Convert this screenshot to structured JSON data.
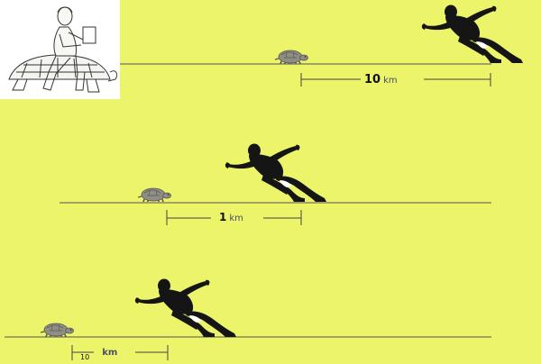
{
  "scenes": [
    {
      "distance_value": "10",
      "distance_unit": "km"
    },
    {
      "distance_value": "1",
      "distance_unit": "km"
    },
    {
      "distance_value": "10",
      "distance_unit": "km"
    }
  ],
  "colors": {
    "background": "#ecf46a",
    "ground_line": "#555555",
    "runner": "#151515",
    "tortoise": "#8a8a80",
    "inset_background": "#ffffff"
  },
  "icons": [
    "achilles-tortoise-inset-illustration",
    "runner-icon",
    "tortoise-icon"
  ]
}
